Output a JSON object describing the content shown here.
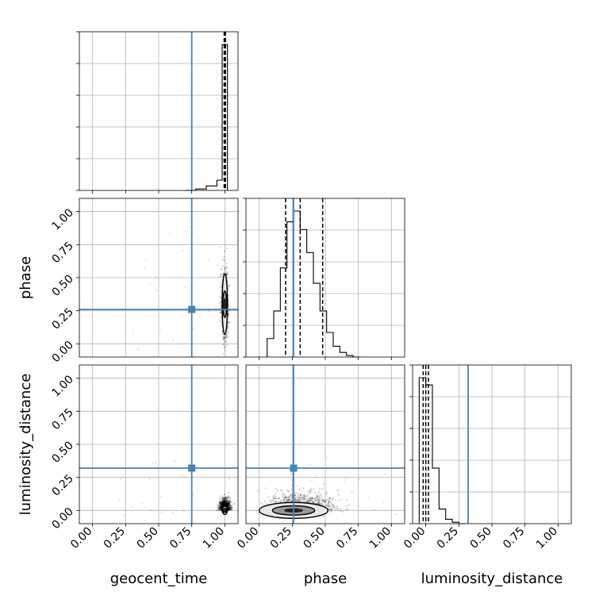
{
  "chart_data": {
    "type": "corner",
    "parameters": [
      "geocent_time",
      "phase",
      "luminosity_distance"
    ],
    "axis_labels": {
      "geocent_time": "geocent_time",
      "phase": "phase",
      "luminosity_distance": "luminosity_distance"
    },
    "range": [
      -0.1,
      1.1
    ],
    "ticks": [
      0.0,
      0.25,
      0.5,
      0.75,
      1.0
    ],
    "tick_labels": [
      "0.00",
      "0.25",
      "0.50",
      "0.75",
      "1.00"
    ],
    "grid": true,
    "truths": {
      "geocent_time": 0.75,
      "phase": 0.26,
      "luminosity_distance": 0.32
    },
    "truth_color": "#4682b4",
    "quantiles": {
      "geocent_time": [
        0.995,
        1.0,
        1.005
      ],
      "phase": [
        0.2,
        0.31,
        0.48
      ],
      "luminosity_distance": [
        -0.02,
        0.0,
        0.02
      ]
    },
    "histograms": {
      "geocent_time": {
        "bin_edges": [
          0.7,
          0.78,
          0.86,
          0.94,
          0.98,
          1.02
        ],
        "counts": [
          0.0,
          0.01,
          0.03,
          0.07,
          1.0
        ]
      },
      "phase": {
        "bin_edges": [
          0.06,
          0.11,
          0.16,
          0.21,
          0.26,
          0.31,
          0.36,
          0.41,
          0.46,
          0.51,
          0.56,
          0.61,
          0.66,
          0.71,
          0.76
        ],
        "counts": [
          0.12,
          0.3,
          0.58,
          0.88,
          0.95,
          0.83,
          0.68,
          0.48,
          0.3,
          0.16,
          0.07,
          0.03,
          0.01,
          0.0
        ]
      },
      "luminosity_distance": {
        "bin_edges": [
          -0.05,
          0.0,
          0.05,
          0.1,
          0.15,
          0.2,
          0.25,
          0.3
        ],
        "counts": [
          1.0,
          0.95,
          0.38,
          0.1,
          0.03,
          0.01,
          0.0
        ]
      }
    },
    "joint": {
      "phase_vs_geocent_time": {
        "peak": [
          1.0,
          0.3
        ],
        "contours": [
          [
            0.02,
            0.23
          ],
          [
            0.015,
            0.1
          ]
        ]
      },
      "luminosity_distance_vs_geocent_time": {
        "peak": [
          1.0,
          0.0
        ],
        "contours": [
          [
            0.02,
            0.03
          ],
          [
            0.015,
            0.015
          ]
        ]
      },
      "luminosity_distance_vs_phase": {
        "peak": [
          0.26,
          0.0
        ],
        "contours": [
          [
            0.26,
            0.06
          ],
          [
            0.16,
            0.035
          ]
        ]
      }
    }
  }
}
